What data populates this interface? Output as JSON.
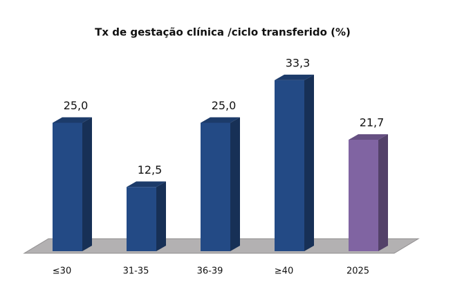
{
  "chart_data": {
    "type": "bar3d",
    "title": "Tx de gestação clínica /ciclo transferido (%)",
    "categories": [
      "≤30",
      "31-35",
      "36-39",
      "≥40",
      "2025"
    ],
    "values": [
      25.0,
      12.5,
      25.0,
      33.3,
      21.7
    ],
    "value_labels": [
      "25,0",
      "12,5",
      "25,0",
      "33,3",
      "21,7"
    ],
    "colors": [
      "#234a85",
      "#234a85",
      "#234a85",
      "#234a85",
      "#8064a2"
    ]
  }
}
